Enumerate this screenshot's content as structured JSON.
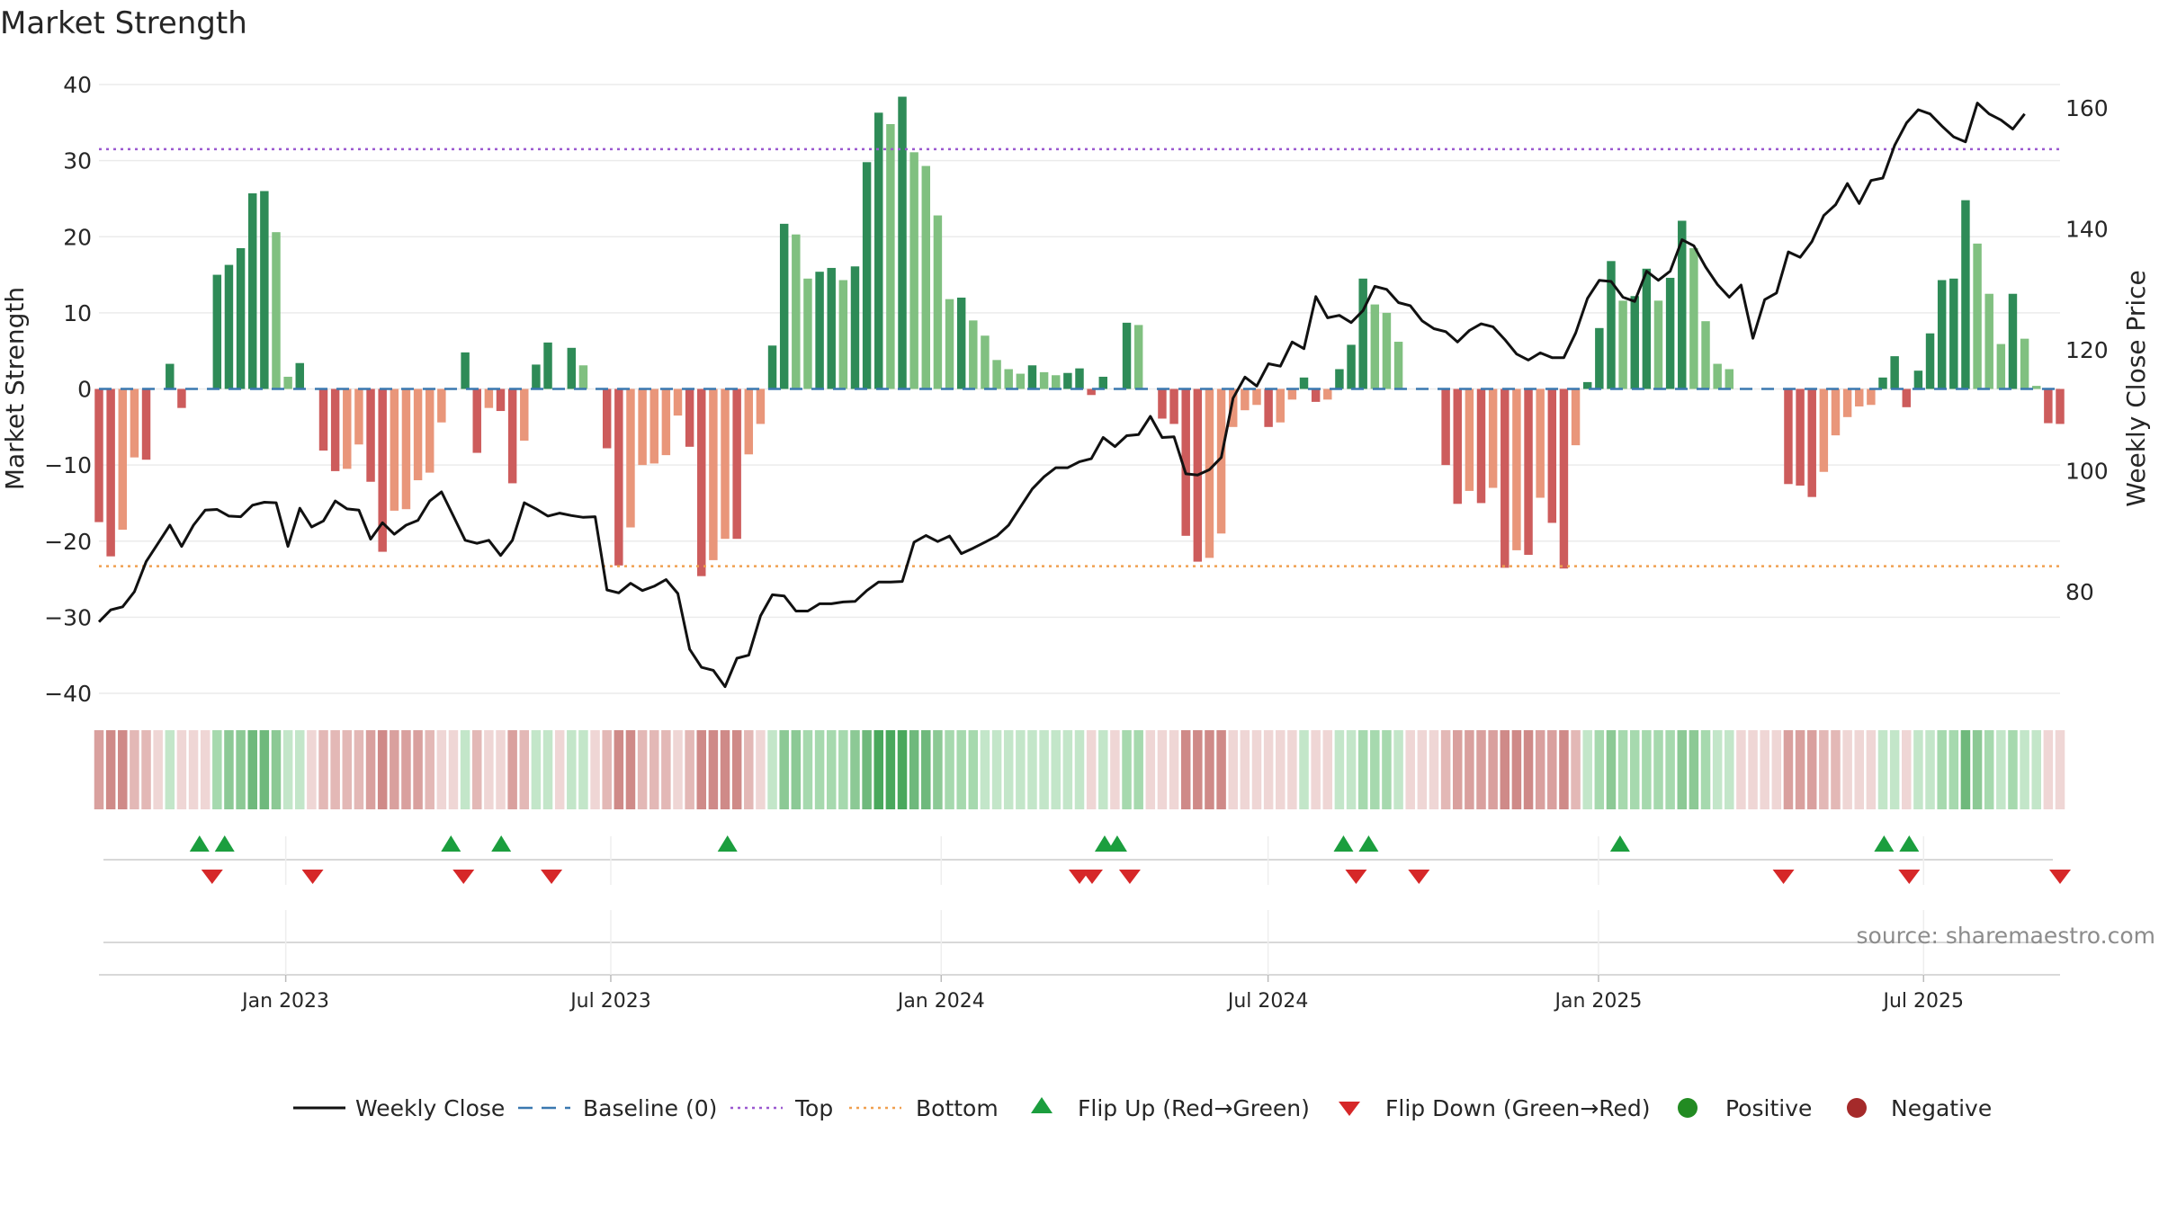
{
  "chart_data": {
    "type": "bar",
    "title": "Market Strength",
    "ylabel": "Market Strength",
    "y2label": "Weekly Close Price",
    "ylim": [
      -40,
      40
    ],
    "y2lim": [
      60,
      165
    ],
    "yticks": [
      40,
      30,
      20,
      10,
      0,
      -10,
      -20,
      -30,
      -40
    ],
    "ytick_labels": [
      "40",
      "30",
      "20",
      "10",
      "0",
      "−10",
      "−20",
      "−30",
      "−40"
    ],
    "y2ticks": [
      160,
      140,
      120,
      100,
      80
    ],
    "x_start": "2022-09-19",
    "x_end": "2025-09-15",
    "xticks": [
      {
        "date": "2023-01-01",
        "label": "Jan 2023"
      },
      {
        "date": "2023-07-01",
        "label": "Jul 2023"
      },
      {
        "date": "2024-01-01",
        "label": "Jan 2024"
      },
      {
        "date": "2024-07-01",
        "label": "Jul 2024"
      },
      {
        "date": "2025-01-01",
        "label": "Jan 2025"
      },
      {
        "date": "2025-07-01",
        "label": "Jul 2025"
      }
    ],
    "top_line": 31.5,
    "bottom_line": -23.3,
    "baseline": 0,
    "strength": [
      -17.5,
      -22,
      -18.5,
      -9,
      -9.3,
      0,
      3.3,
      -2.5,
      0,
      0,
      15,
      16.3,
      18.5,
      25.7,
      26,
      20.6,
      1.6,
      3.4,
      0,
      -8.1,
      -10.8,
      -10.5,
      -7.3,
      -12.2,
      -21.4,
      -16,
      -15.8,
      -12,
      -11,
      -4.4,
      0,
      4.8,
      -8.4,
      -2.5,
      -2.9,
      -12.4,
      -6.8,
      3.2,
      6.1,
      0,
      5.4,
      3.1,
      0,
      -7.8,
      -23.2,
      -18.2,
      -10,
      -9.8,
      -8.7,
      -3.5,
      -7.6,
      -24.6,
      -22.5,
      -19.7,
      -19.7,
      -8.6,
      -4.6,
      5.7,
      21.7,
      20.3,
      14.5,
      15.4,
      15.9,
      14.3,
      16.1,
      29.8,
      36.3,
      34.8,
      38.4,
      31.1,
      29.3,
      22.8,
      11.8,
      12,
      9,
      7,
      3.8,
      2.6,
      2,
      3.1,
      2.2,
      1.8,
      2.1,
      2.7,
      -0.8,
      1.6,
      0,
      8.7,
      8.4,
      0,
      -3.9,
      -4.6,
      -19.3,
      -22.7,
      -22.2,
      -19,
      -5,
      -2.8,
      -2.1,
      -5,
      -4.4,
      -1.4,
      1.5,
      -1.7,
      -1.4,
      2.6,
      5.8,
      14.5,
      11.1,
      10,
      6.2,
      0,
      0,
      0,
      -10,
      -15.1,
      -13.4,
      -15,
      -13,
      -23.5,
      -21.2,
      -21.8,
      -14.3,
      -17.6,
      -23.6,
      -7.4,
      0.9,
      8,
      16.8,
      11.6,
      12.2,
      15.8,
      11.6,
      14.6,
      22.1,
      18.5,
      8.9,
      3.3,
      2.6,
      0,
      0,
      0,
      0,
      -12.5,
      -12.7,
      -14.2,
      -10.9,
      -6.1,
      -3.7,
      -2.3,
      -2.1,
      1.5,
      4.3,
      -2.4,
      2.4,
      7.3,
      14.3,
      14.5,
      24.8,
      19.1,
      12.5,
      5.9,
      12.5,
      6.6,
      0.4,
      -4.5,
      -4.6
    ],
    "weekly_close": [
      75,
      77,
      77.5,
      80,
      85,
      88,
      91,
      87.5,
      91,
      93.5,
      93.6,
      92.5,
      92.4,
      94.3,
      94.8,
      94.7,
      87.5,
      93.8,
      90.7,
      91.7,
      95,
      93.7,
      93.5,
      88.7,
      91.4,
      89.5,
      91,
      91.8,
      95,
      96.5,
      92.5,
      88.5,
      88,
      88.5,
      86,
      88.5,
      94.7,
      93.7,
      92.5,
      93,
      92.6,
      92.3,
      92.4,
      80.3,
      79.8,
      81.4,
      80.2,
      80.9,
      82,
      79.7,
      70.5,
      67.5,
      67,
      64.3,
      69,
      69.5,
      76,
      79.5,
      79.3,
      76.8,
      76.8,
      78,
      78,
      78.3,
      78.4,
      80.2,
      81.6,
      81.6,
      81.7,
      88.2,
      89.3,
      88.3,
      89.2,
      86.3,
      87.2,
      88.2,
      89.2,
      91,
      94,
      97,
      99,
      100.5,
      100.5,
      101.5,
      102,
      105.5,
      104,
      105.8,
      106,
      109,
      105.5,
      105.6,
      99.5,
      99.3,
      100.2,
      102.2,
      112,
      115.5,
      114,
      117.7,
      117.3,
      121.3,
      120.2,
      128.8,
      125.3,
      125.7,
      124.5,
      126.5,
      130.5,
      130,
      127.8,
      127.3,
      124.8,
      123.5,
      123,
      121.3,
      123.2,
      124.3,
      123.8,
      121.7,
      119.3,
      118.3,
      119.5,
      118.7,
      118.7,
      122.8,
      128.5,
      131.5,
      131.3,
      128.7,
      128,
      133,
      131.5,
      133,
      138.2,
      137.2,
      133.7,
      130.8,
      128.7,
      130.7,
      121.9,
      128.3,
      129.4,
      136.2,
      135.3,
      137.9,
      142.2,
      144,
      147.5,
      144.2,
      148,
      148.4,
      153.8,
      157.5,
      159.7,
      159,
      157,
      155.2,
      154.4,
      160.8,
      159,
      158,
      156.5,
      159
    ]
  },
  "strip": {
    "green_shades": [
      "#c3e6c9",
      "#a6d9ae",
      "#8cc995",
      "#6fb97c",
      "#49a85c"
    ],
    "red_shades": [
      "#efd6d5",
      "#e3b8b6",
      "#d9a09e",
      "#cf8a88"
    ]
  },
  "flips": {
    "up_dates": [
      "2022-11-14",
      "2022-11-28",
      "2023-04-03",
      "2023-05-01",
      "2023-09-04",
      "2024-04-01",
      "2024-04-08",
      "2024-08-12",
      "2024-08-26",
      "2025-01-13",
      "2025-06-09",
      "2025-06-23"
    ],
    "down_dates": [
      "2022-11-21",
      "2023-01-16",
      "2023-04-10",
      "2023-05-29",
      "2024-03-18",
      "2024-03-25",
      "2024-04-15",
      "2024-08-19",
      "2024-09-23",
      "2025-04-14",
      "2025-06-23",
      "2025-09-15"
    ],
    "up_color": "#1b9e3e",
    "down_color": "#d62728"
  },
  "colors": {
    "strong_green": "#2e8b57",
    "light_green": "#80c080",
    "strong_red": "#cd5c5c",
    "light_red": "#e9967a",
    "top": "#9b59d0",
    "bottom": "#f0a050",
    "baseline": "#3a78b0",
    "close": "#111111"
  },
  "source": "source: sharemaestro.com",
  "legend": [
    {
      "key": "line",
      "label": "Weekly Close"
    },
    {
      "key": "dash",
      "label": "Baseline (0)"
    },
    {
      "key": "dot-purple",
      "label": "Top"
    },
    {
      "key": "dot-orange",
      "label": "Bottom"
    },
    {
      "key": "tri-up",
      "label": "Flip Up (Red→Green)"
    },
    {
      "key": "tri-down",
      "label": "Flip Down (Green→Red)"
    },
    {
      "key": "circle-green",
      "label": "Positive",
      "color": "#228b22"
    },
    {
      "key": "circle-red",
      "label": "Negative",
      "color": "#a52a2a"
    }
  ]
}
